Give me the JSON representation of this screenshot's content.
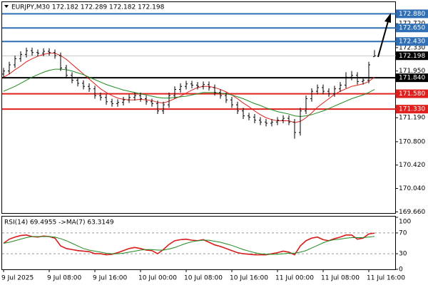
{
  "chart_data": [
    {
      "type": "ohlc",
      "title": "EURJPY,M30 172.182 172.289 172.182 172.198",
      "categories": [
        "9 Jul 2025",
        null,
        null,
        null,
        null,
        null,
        null,
        null,
        "9 Jul 08:00",
        null,
        null,
        null,
        null,
        null,
        null,
        null,
        "9 Jul 16:00",
        null,
        null,
        null,
        null,
        null,
        null,
        null,
        "10 Jul 00:00",
        null,
        null,
        null,
        null,
        null,
        null,
        null,
        "10 Jul 08:00",
        null,
        null,
        null,
        null,
        null,
        null,
        null,
        "10 Jul 16:00",
        null,
        null,
        null,
        null,
        null,
        null,
        null,
        "11 Jul 00:00",
        null,
        null,
        null,
        null,
        null,
        null,
        null,
        "11 Jul 08:00",
        null,
        null,
        null,
        null,
        null,
        null,
        null,
        "11 Jul 16:00",
        null
      ],
      "open": [
        171.9,
        171.95,
        172.05,
        172.15,
        172.22,
        172.28,
        172.25,
        172.24,
        172.27,
        172.25,
        172.2,
        172.0,
        171.88,
        171.8,
        171.75,
        171.7,
        171.66,
        171.55,
        171.52,
        171.45,
        171.42,
        171.44,
        171.48,
        171.52,
        171.55,
        171.5,
        171.45,
        171.42,
        171.3,
        171.4,
        171.55,
        171.65,
        171.7,
        171.74,
        171.72,
        171.7,
        171.73,
        171.68,
        171.6,
        171.55,
        171.48,
        171.4,
        171.3,
        171.22,
        171.2,
        171.15,
        171.12,
        171.1,
        171.12,
        171.15,
        171.18,
        171.12,
        170.95,
        171.3,
        171.5,
        171.62,
        171.68,
        171.62,
        171.58,
        171.66,
        171.72,
        171.85,
        171.88,
        171.78,
        171.8,
        172.182
      ],
      "high": [
        172.0,
        172.1,
        172.2,
        172.27,
        172.33,
        172.33,
        172.3,
        172.32,
        172.32,
        172.3,
        172.25,
        172.05,
        171.93,
        171.85,
        171.8,
        171.75,
        171.71,
        171.6,
        171.57,
        171.5,
        171.49,
        171.53,
        171.57,
        171.6,
        171.6,
        171.55,
        171.5,
        171.47,
        171.45,
        171.6,
        171.7,
        171.75,
        171.79,
        171.79,
        171.77,
        171.78,
        171.78,
        171.73,
        171.65,
        171.6,
        171.53,
        171.45,
        171.35,
        171.27,
        171.25,
        171.2,
        171.17,
        171.17,
        171.2,
        171.23,
        171.23,
        171.17,
        171.35,
        171.55,
        171.67,
        171.73,
        171.73,
        171.67,
        171.71,
        171.77,
        171.93,
        171.95,
        171.93,
        171.85,
        172.1,
        172.289
      ],
      "low": [
        171.85,
        171.9,
        172.0,
        172.1,
        172.17,
        172.2,
        172.19,
        172.19,
        172.2,
        172.15,
        171.95,
        171.83,
        171.75,
        171.7,
        171.65,
        171.61,
        171.5,
        171.47,
        171.4,
        171.37,
        171.37,
        171.39,
        171.43,
        171.47,
        171.45,
        171.4,
        171.37,
        171.25,
        171.25,
        171.35,
        171.5,
        171.6,
        171.65,
        171.67,
        171.65,
        171.65,
        171.63,
        171.55,
        171.5,
        171.43,
        171.35,
        171.25,
        171.17,
        171.15,
        171.1,
        171.07,
        171.05,
        171.05,
        171.07,
        171.1,
        171.07,
        170.85,
        170.9,
        171.25,
        171.45,
        171.57,
        171.57,
        171.53,
        171.53,
        171.61,
        171.67,
        171.8,
        171.73,
        171.73,
        171.75,
        172.182
      ],
      "close": [
        171.95,
        172.05,
        172.15,
        172.22,
        172.28,
        172.25,
        172.24,
        172.27,
        172.25,
        172.2,
        172.0,
        171.88,
        171.8,
        171.75,
        171.7,
        171.66,
        171.55,
        171.52,
        171.45,
        171.42,
        171.44,
        171.48,
        171.52,
        171.55,
        171.5,
        171.45,
        171.42,
        171.3,
        171.4,
        171.55,
        171.65,
        171.7,
        171.74,
        171.72,
        171.7,
        171.73,
        171.68,
        171.6,
        171.55,
        171.48,
        171.4,
        171.3,
        171.22,
        171.2,
        171.15,
        171.12,
        171.1,
        171.12,
        171.15,
        171.18,
        171.12,
        170.95,
        171.3,
        171.5,
        171.62,
        171.68,
        171.62,
        171.58,
        171.66,
        171.72,
        171.85,
        171.88,
        171.78,
        171.8,
        172.05,
        172.198
      ],
      "color": "#000000",
      "overlays": [
        {
          "color": "#e0201c",
          "values": [
            171.85,
            171.9,
            171.97,
            172.03,
            172.1,
            172.15,
            172.19,
            172.22,
            172.24,
            172.24,
            172.2,
            172.14,
            172.06,
            171.98,
            171.9,
            171.82,
            171.74,
            171.66,
            171.6,
            171.55,
            171.51,
            171.49,
            171.48,
            171.48,
            171.49,
            171.48,
            171.47,
            171.44,
            171.43,
            171.46,
            171.5,
            171.54,
            171.59,
            171.64,
            171.68,
            171.7,
            171.7,
            171.68,
            171.65,
            171.61,
            171.56,
            171.5,
            171.43,
            171.37,
            171.3,
            171.24,
            171.19,
            171.16,
            171.14,
            171.14,
            171.14,
            171.11,
            171.13,
            171.19,
            171.27,
            171.36,
            171.43,
            171.5,
            171.57,
            171.62,
            171.66,
            171.7,
            171.72,
            171.74,
            171.78,
            171.85
          ]
        },
        {
          "color": "#1f8a1f",
          "values": [
            171.62,
            171.66,
            171.7,
            171.75,
            171.8,
            171.85,
            171.89,
            171.93,
            171.96,
            171.98,
            171.98,
            171.97,
            171.95,
            171.92,
            171.89,
            171.85,
            171.81,
            171.77,
            171.73,
            171.7,
            171.67,
            171.64,
            171.62,
            171.6,
            171.58,
            171.56,
            171.54,
            171.52,
            171.51,
            171.51,
            171.52,
            171.53,
            171.54,
            171.56,
            171.58,
            171.6,
            171.6,
            171.6,
            171.59,
            171.58,
            171.56,
            171.53,
            171.5,
            171.46,
            171.42,
            171.39,
            171.35,
            171.32,
            171.29,
            171.27,
            171.25,
            171.22,
            171.21,
            171.22,
            171.24,
            171.27,
            171.3,
            171.34,
            171.38,
            171.42,
            171.46,
            171.5,
            171.53,
            171.56,
            171.6,
            171.65
          ]
        }
      ],
      "levels": [
        {
          "value": 172.88,
          "label": "172.880",
          "color": "#2f6fb5"
        },
        {
          "value": 172.65,
          "label": "172.650",
          "color": "#2f6fb5"
        },
        {
          "value": 172.43,
          "label": "172.430",
          "color": "#2f6fb5"
        },
        {
          "value": 171.84,
          "label": "171.840",
          "color": "#000000"
        },
        {
          "value": 171.58,
          "label": "171.580",
          "color": "#e0201c"
        },
        {
          "value": 171.33,
          "label": "171.330",
          "color": "#e0201c"
        }
      ],
      "current_price": 172.198,
      "ylim": [
        169.64,
        173.07
      ],
      "yticks": [
        {
          "value": 169.66,
          "label": "169.660"
        },
        {
          "value": 170.04,
          "label": "170.040"
        },
        {
          "value": 170.42,
          "label": "170.420"
        },
        {
          "value": 170.8,
          "label": "170.800"
        },
        {
          "value": 171.19,
          "label": "171.190"
        },
        {
          "value": 171.95,
          "label": "171.950"
        },
        {
          "value": 172.33,
          "label": "172.330"
        },
        {
          "value": 172.72,
          "label": "172.720"
        }
      ]
    },
    {
      "type": "line",
      "title": "RSI(14) 69.4955  ->MA(7) 63.3149",
      "series": [
        {
          "color": "#d81b1b",
          "values": [
            50,
            58,
            62,
            65,
            66,
            63,
            62,
            64,
            63,
            60,
            45,
            40,
            38,
            36,
            35,
            34,
            30,
            30,
            28,
            29,
            32,
            36,
            40,
            42,
            40,
            37,
            36,
            30,
            38,
            48,
            55,
            57,
            58,
            56,
            55,
            57,
            52,
            47,
            44,
            40,
            36,
            32,
            30,
            29,
            28,
            28,
            28,
            30,
            32,
            35,
            33,
            28,
            45,
            55,
            60,
            62,
            57,
            55,
            59,
            62,
            66,
            66,
            58,
            60,
            68,
            69.4955
          ]
        },
        {
          "color": "#1f8a1f",
          "values": [
            50,
            52,
            55,
            58,
            61,
            63,
            63,
            63,
            63,
            62,
            59,
            55,
            50,
            45,
            40,
            37,
            35,
            33,
            31,
            30,
            30,
            31,
            33,
            35,
            37,
            38,
            38,
            37,
            37,
            39,
            42,
            46,
            50,
            53,
            55,
            56,
            56,
            54,
            52,
            49,
            46,
            42,
            38,
            35,
            32,
            30,
            29,
            29,
            29,
            30,
            31,
            31,
            33,
            36,
            41,
            46,
            51,
            55,
            57,
            58,
            60,
            61,
            61,
            61,
            62,
            63.3149
          ]
        }
      ],
      "dashed_levels": [
        30,
        70
      ],
      "ylim": [
        0,
        100
      ],
      "yticks": [
        0,
        30,
        70,
        100
      ]
    }
  ]
}
